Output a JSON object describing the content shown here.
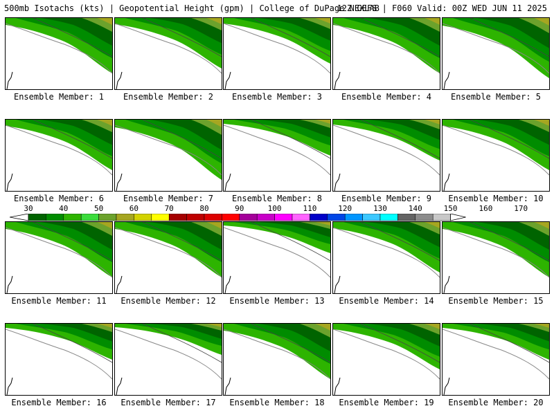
{
  "header": {
    "left": "500mb Isotachs (kts) | Geopotential Height (gpm) | College of DuPage NEXLAB",
    "right": "12Z GEFS | F060 Valid: 00Z WED JUN 11 2025"
  },
  "members": [
    {
      "label": "Ensemble Member: 1",
      "strength": 1.0
    },
    {
      "label": "Ensemble Member: 2",
      "strength": 0.9
    },
    {
      "label": "Ensemble Member: 3",
      "strength": 0.8
    },
    {
      "label": "Ensemble Member: 4",
      "strength": 1.0
    },
    {
      "label": "Ensemble Member: 5",
      "strength": 1.1
    },
    {
      "label": "Ensemble Member: 6",
      "strength": 0.9
    },
    {
      "label": "Ensemble Member: 7",
      "strength": 1.1
    },
    {
      "label": "Ensemble Member: 8",
      "strength": 0.6
    },
    {
      "label": "Ensemble Member: 9",
      "strength": 0.7
    },
    {
      "label": "Ensemble Member: 10",
      "strength": 0.9
    },
    {
      "label": "Ensemble Member: 11",
      "strength": 1.0
    },
    {
      "label": "Ensemble Member: 12",
      "strength": 1.0
    },
    {
      "label": "Ensemble Member: 13",
      "strength": 0.5
    },
    {
      "label": "Ensemble Member: 14",
      "strength": 0.9
    },
    {
      "label": "Ensemble Member: 15",
      "strength": 1.0
    },
    {
      "label": "Ensemble Member: 16",
      "strength": 0.6
    },
    {
      "label": "Ensemble Member: 17",
      "strength": 0.5
    },
    {
      "label": "Ensemble Member: 18",
      "strength": 1.0
    },
    {
      "label": "Ensemble Member: 19",
      "strength": 0.8
    },
    {
      "label": "Ensemble Member: 20",
      "strength": 0.6
    }
  ],
  "legend": {
    "labels": [
      "30",
      "40",
      "50",
      "60",
      "70",
      "80",
      "90",
      "100",
      "110",
      "120",
      "130",
      "140",
      "150",
      "160",
      "170"
    ],
    "colors": [
      "#006400",
      "#008c00",
      "#2db400",
      "#3cdc3c",
      "#6ca22c",
      "#a6a621",
      "#d2d200",
      "#ffff00",
      "#a50000",
      "#be0000",
      "#dc0000",
      "#ff0000",
      "#a4009a",
      "#c800c8",
      "#ff00ff",
      "#ff64ff",
      "#0000c8",
      "#0046e6",
      "#0096ff",
      "#3cc8ff",
      "#00ffff",
      "#646464",
      "#8c8c8c",
      "#c8c8c8"
    ]
  }
}
